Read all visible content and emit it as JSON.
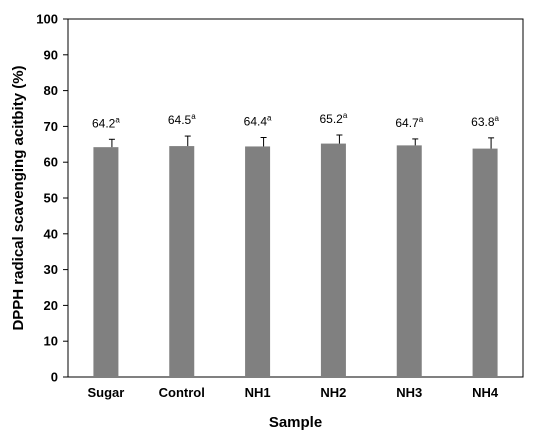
{
  "chart_data": {
    "type": "bar",
    "xlabel": "Sample",
    "ylabel": "DPPH radical scavenging acitbity (%)",
    "ylim": [
      0,
      100
    ],
    "yticks": [
      0,
      10,
      20,
      30,
      40,
      50,
      60,
      70,
      80,
      90,
      100
    ],
    "grid": false,
    "categories": [
      "Sugar",
      "Control",
      "NH1",
      "NH2",
      "NH3",
      "NH4"
    ],
    "values": [
      64.2,
      64.5,
      64.4,
      65.2,
      64.7,
      63.8
    ],
    "errors": [
      2.2,
      2.8,
      2.5,
      2.4,
      1.8,
      3.0
    ],
    "labels": [
      "64.2",
      "64.5",
      "64.4",
      "65.2",
      "64.7",
      "63.8"
    ],
    "label_superscripts": [
      "a",
      "a",
      "a",
      "a",
      "a",
      "a"
    ],
    "bar_color": "#808080",
    "axis_color": "#000000"
  }
}
